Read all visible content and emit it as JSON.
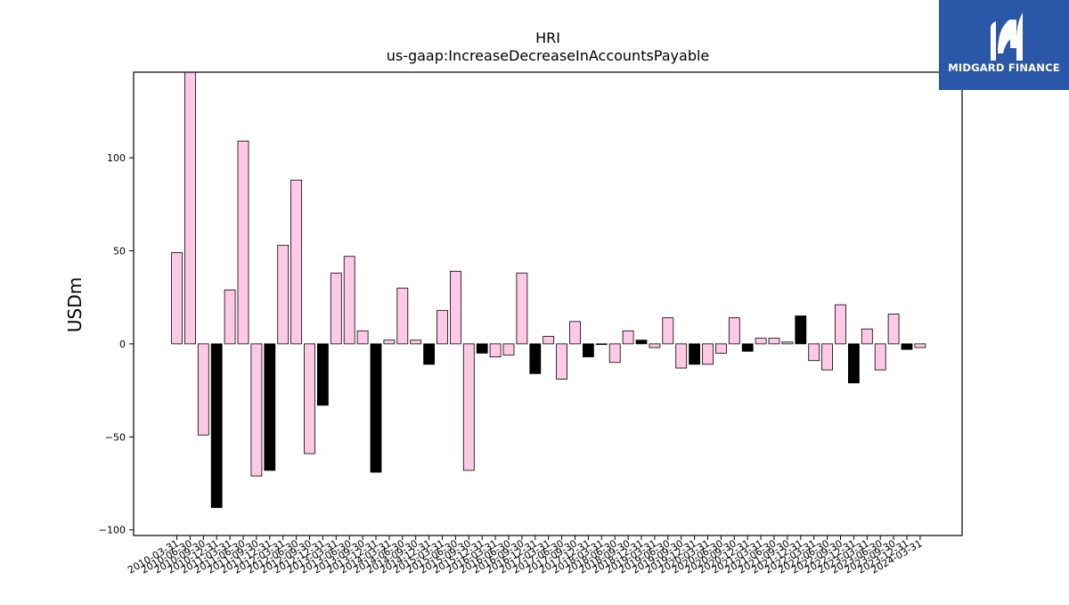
{
  "brand": {
    "name": "MIDGARD FINANCE",
    "bg_color": "#2b57a8"
  },
  "chart_data": {
    "type": "bar",
    "title": "HRI",
    "subtitle": "us-gaap:IncreaseDecreaseInAccountsPayable",
    "xlabel": "",
    "ylabel": "USDm",
    "ylim": [
      -103,
      146
    ],
    "yticks": [
      -100,
      -50,
      0,
      50,
      100
    ],
    "grid": false,
    "legend": "none",
    "colors": {
      "default": "#ffc8e4",
      "highlight": "#000000",
      "edge": "#000000"
    },
    "categories": [
      "2010-03-31",
      "2010-06-30",
      "2010-09-30",
      "2010-12-31",
      "2011-03-31",
      "2011-06-30",
      "2011-09-30",
      "2011-12-31",
      "2012-03-31",
      "2012-06-30",
      "2012-09-30",
      "2012-12-31",
      "2013-03-31",
      "2013-06-30",
      "2013-09-30",
      "2013-12-31",
      "2014-03-31",
      "2014-06-30",
      "2014-09-30",
      "2014-12-31",
      "2015-03-31",
      "2015-06-30",
      "2015-09-30",
      "2015-12-31",
      "2016-03-31",
      "2016-06-30",
      "2016-09-30",
      "2016-12-31",
      "2017-03-31",
      "2017-06-30",
      "2017-09-30",
      "2017-12-31",
      "2018-03-31",
      "2018-06-30",
      "2018-09-30",
      "2018-12-31",
      "2019-03-31",
      "2019-06-30",
      "2019-09-30",
      "2019-12-31",
      "2020-03-31",
      "2020-06-30",
      "2020-09-30",
      "2020-12-31",
      "2021-03-31",
      "2021-06-30",
      "2021-09-30",
      "2021-12-31",
      "2022-03-31",
      "2022-06-30",
      "2022-09-30",
      "2022-12-31",
      "2023-03-31",
      "2023-06-30",
      "2023-09-30",
      "2023-12-31",
      "2024-03-31"
    ],
    "values": [
      49,
      146,
      -49,
      -88,
      29,
      109,
      -71,
      -68,
      53,
      88,
      -59,
      -33,
      38,
      47,
      7,
      -69,
      2,
      30,
      2,
      -11,
      18,
      39,
      -68,
      -5,
      -7,
      -6,
      38,
      -16,
      4,
      -19,
      12,
      -7,
      0,
      -10,
      7,
      2,
      -2,
      14,
      -13,
      -11,
      -11,
      -5,
      14,
      -4,
      3,
      3,
      1,
      15,
      -9,
      -14,
      21,
      -21,
      8,
      -14,
      16,
      -3,
      -2
    ],
    "highlight": [
      false,
      false,
      false,
      true,
      false,
      false,
      false,
      true,
      false,
      false,
      false,
      true,
      false,
      false,
      false,
      true,
      false,
      false,
      false,
      true,
      false,
      false,
      false,
      true,
      false,
      false,
      false,
      true,
      false,
      false,
      false,
      true,
      false,
      false,
      false,
      true,
      false,
      false,
      false,
      true,
      false,
      false,
      false,
      true,
      false,
      false,
      false,
      true,
      false,
      false,
      false,
      true,
      false,
      false,
      false,
      true,
      false
    ]
  }
}
